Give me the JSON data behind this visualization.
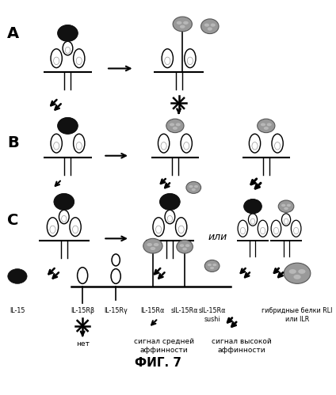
{
  "title": "ФИГ. 7",
  "background_color": "#ffffff",
  "section_A_label": "A",
  "section_B_label": "B",
  "section_C_label": "C",
  "ili_text": "или",
  "legend_labels": [
    "IL-15",
    "IL-15Rβ",
    "IL-15Rγ",
    "IL-15Rα",
    "sIL-15Rα",
    "sIL-15Rα\nsushi",
    "гибридные белки RLI\nили ILR"
  ],
  "signal_labels": [
    "нет",
    "сигнал средней\nаффинности",
    "сигнал высокой\nаффинности"
  ]
}
